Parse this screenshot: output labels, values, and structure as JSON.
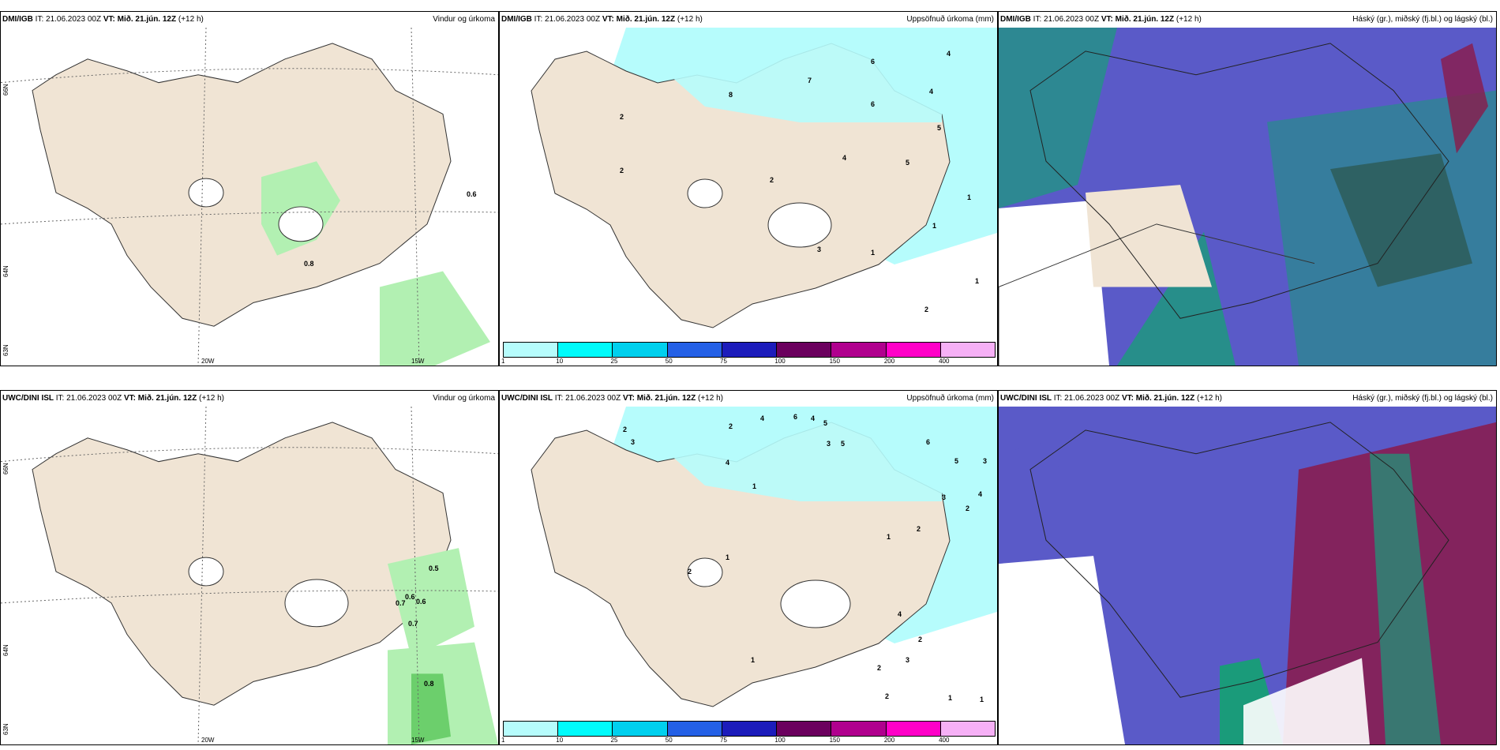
{
  "panels": [
    {
      "model": "DMI/IGB",
      "it": "IT: 21.06.2023 00Z",
      "vt": "VT: Mið. 21.jún. 12Z",
      "step": "(+12 h)",
      "title": "Vindur og úrkoma"
    },
    {
      "model": "DMI/IGB",
      "it": "IT: 21.06.2023 00Z",
      "vt": "VT: Mið. 21.jún. 12Z",
      "step": "(+12 h)",
      "title": "Uppsöfnuð úrkoma (mm)"
    },
    {
      "model": "DMI/IGB",
      "it": "IT: 21.06.2023 00Z",
      "vt": "VT: Mið. 21.jún. 12Z",
      "step": "(+12 h)",
      "title": "Háský (gr.), miðský (fj.bl.) og lágský (bl.)"
    },
    {
      "model": "UWC/DINI ISL",
      "it": "IT: 21.06.2023 00Z",
      "vt": "VT: Mið. 21.jún. 12Z",
      "step": "(+12 h)",
      "title": "Vindur og úrkoma"
    },
    {
      "model": "UWC/DINI ISL",
      "it": "IT: 21.06.2023 00Z",
      "vt": "VT: Mið. 21.jún. 12Z",
      "step": "(+12 h)",
      "title": "Uppsöfnuð úrkoma (mm)"
    },
    {
      "model": "UWC/DINI ISL",
      "it": "IT: 21.06.2023 00Z",
      "vt": "VT: Mið. 21.jún. 12Z",
      "step": "(+12 h)",
      "title": "Háský (gr.), miðský (fj.bl.) og lágský (bl.)"
    }
  ],
  "axis_labels": {
    "lat66": "66N",
    "lat64": "64N",
    "lat63": "63N",
    "lon20": "20W",
    "lon15": "15W"
  },
  "wind_values_top": [
    "0.6",
    "0.8"
  ],
  "wind_values_bottom": [
    "0.5",
    "0.6",
    "0.6",
    "0.7",
    "0.7",
    "0.8"
  ],
  "precip_values_top": [
    "4",
    "6",
    "8",
    "7",
    "4",
    "6",
    "5",
    "4",
    "2",
    "2",
    "2",
    "5",
    "1",
    "1",
    "3",
    "1",
    "1",
    "2"
  ],
  "precip_values_bottom": [
    "2",
    "3",
    "4",
    "6",
    "4",
    "5",
    "4",
    "2",
    "3",
    "5",
    "6",
    "5",
    "3",
    "2",
    "4",
    "3",
    "2",
    "1",
    "1",
    "2",
    "1",
    "1",
    "4",
    "2",
    "2",
    "3",
    "2",
    "1",
    "1"
  ],
  "colorbar": {
    "colors": [
      "#b6fcfc",
      "#00fbfb",
      "#00d0ee",
      "#2460e6",
      "#1c1cbb",
      "#6b005e",
      "#b0008e",
      "#ff00c8",
      "#f6b0f6"
    ],
    "ticks": [
      "1",
      "10",
      "25",
      "50",
      "75",
      "100",
      "150",
      "200",
      "400"
    ]
  },
  "colors": {
    "land": "#f0e4d4",
    "precip_light": "#b2f0b2",
    "precip_dark": "#6ccf6c",
    "dry": "#b6fcfc",
    "low_cloud": "#5a5ac8",
    "mid_cloud": "#1a9b7a",
    "high_cloud": "#8b1a4a"
  }
}
